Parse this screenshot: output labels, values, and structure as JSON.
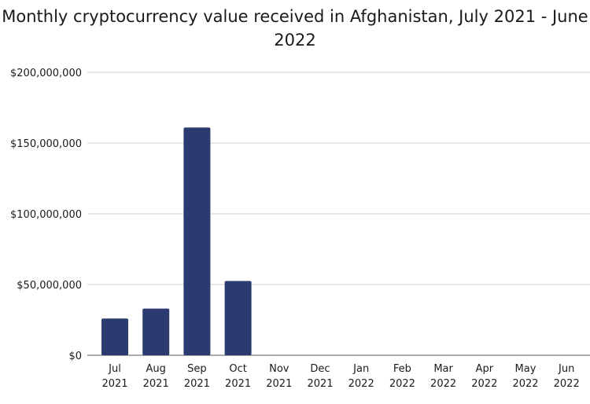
{
  "chart_data": {
    "type": "bar",
    "title": "Monthly cryptocurrency value received in Afghanistan, July 2021 - June 2022",
    "xlabel": "",
    "ylabel": "",
    "ylim": [
      0,
      200000000
    ],
    "yticks": [
      "$0",
      "$50,000,000",
      "$100,000,000",
      "$150,000,000",
      "$200,000,000"
    ],
    "categories": [
      [
        "Jul",
        "2021"
      ],
      [
        "Aug",
        "2021"
      ],
      [
        "Sep",
        "2021"
      ],
      [
        "Oct",
        "2021"
      ],
      [
        "Nov",
        "2021"
      ],
      [
        "Dec",
        "2021"
      ],
      [
        "Jan",
        "2022"
      ],
      [
        "Feb",
        "2022"
      ],
      [
        "Mar",
        "2022"
      ],
      [
        "Apr",
        "2022"
      ],
      [
        "May",
        "2022"
      ],
      [
        "Jun",
        "2022"
      ]
    ],
    "values": [
      26000000,
      33000000,
      161000000,
      52500000,
      0,
      0,
      0,
      0,
      0,
      0,
      0,
      0
    ],
    "bar_color": "#2b3a6f",
    "grid": true,
    "legend": "none"
  }
}
